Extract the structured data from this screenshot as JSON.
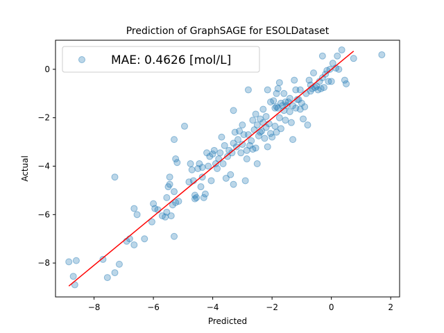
{
  "chart_data": {
    "type": "scatter",
    "title": "Prediction of GraphSAGE for ESOLDataset",
    "xlabel": "Predicted",
    "ylabel": "Actual",
    "xlim": [
      -9.3,
      2.3
    ],
    "ylim": [
      -9.4,
      1.2
    ],
    "xticks": [
      -8,
      -6,
      -4,
      -2,
      0,
      2
    ],
    "yticks": [
      -8,
      -6,
      -4,
      -2,
      0
    ],
    "xtick_labels": [
      "−8",
      "−6",
      "−4",
      "−2",
      "0",
      "2"
    ],
    "ytick_labels": [
      "−8",
      "−6",
      "−4",
      "−2",
      "0"
    ],
    "grid": false,
    "legend": {
      "position": "upper-left",
      "entry": "MAE: 0.4626 [mol/L]"
    },
    "colors": {
      "points": "#1f77b4",
      "fit_line": "#ff0000"
    },
    "fit_line": {
      "x": [
        -8.85,
        0.75
      ],
      "y": [
        -8.95,
        0.75
      ]
    },
    "series": [
      {
        "points": [
          [
            -8.85,
            -7.95
          ],
          [
            -8.7,
            -8.55
          ],
          [
            -8.65,
            -8.9
          ],
          [
            -8.6,
            -7.9
          ],
          [
            -7.7,
            -7.85
          ],
          [
            -7.55,
            -8.6
          ],
          [
            -7.3,
            -8.4
          ],
          [
            -7.15,
            -8.05
          ],
          [
            -7.3,
            -4.45
          ],
          [
            -6.9,
            -7.1
          ],
          [
            -6.8,
            -7.0
          ],
          [
            -6.65,
            -7.25
          ],
          [
            -6.65,
            -5.75
          ],
          [
            -6.55,
            -6.0
          ],
          [
            -6.3,
            -7.0
          ],
          [
            -6.05,
            -6.3
          ],
          [
            -6.0,
            -5.55
          ],
          [
            -5.95,
            -5.75
          ],
          [
            -5.85,
            -5.8
          ],
          [
            -5.7,
            -6.05
          ],
          [
            -5.6,
            -6.1
          ],
          [
            -5.55,
            -5.9
          ],
          [
            -5.5,
            -4.85
          ],
          [
            -5.45,
            -4.45
          ],
          [
            -5.4,
            -6.05
          ],
          [
            -5.35,
            -5.6
          ],
          [
            -5.3,
            -6.9
          ],
          [
            -5.3,
            -5.05
          ],
          [
            -5.25,
            -3.7
          ],
          [
            -5.25,
            -5.5
          ],
          [
            -5.2,
            -3.85
          ],
          [
            -5.15,
            -5.45
          ],
          [
            -5.3,
            -2.9
          ],
          [
            -5.45,
            -4.75
          ],
          [
            -5.55,
            -5.3
          ],
          [
            -4.95,
            -2.35
          ],
          [
            -4.8,
            -4.65
          ],
          [
            -4.75,
            -3.9
          ],
          [
            -4.7,
            -4.15
          ],
          [
            -4.65,
            -4.6
          ],
          [
            -4.6,
            -5.2
          ],
          [
            -4.6,
            -5.35
          ],
          [
            -4.55,
            -5.3
          ],
          [
            -4.5,
            -4.1
          ],
          [
            -4.45,
            -3.9
          ],
          [
            -4.4,
            -4.85
          ],
          [
            -4.35,
            -4.45
          ],
          [
            -4.35,
            -4.05
          ],
          [
            -4.3,
            -5.3
          ],
          [
            -4.25,
            -5.15
          ],
          [
            -4.2,
            -3.45
          ],
          [
            -4.15,
            -4.0
          ],
          [
            -4.1,
            -3.6
          ],
          [
            -4.05,
            -4.6
          ],
          [
            -4.0,
            -3.5
          ],
          [
            -3.95,
            -3.35
          ],
          [
            -3.9,
            -3.9
          ],
          [
            -3.85,
            -4.1
          ],
          [
            -3.8,
            -3.7
          ],
          [
            -3.75,
            -3.45
          ],
          [
            -3.7,
            -2.8
          ],
          [
            -3.65,
            -3.9
          ],
          [
            -3.6,
            -3.15
          ],
          [
            -3.55,
            -4.5
          ],
          [
            -3.5,
            -3.6
          ],
          [
            -3.45,
            -3.35
          ],
          [
            -3.4,
            -4.35
          ],
          [
            -3.35,
            -3.45
          ],
          [
            -3.3,
            -4.75
          ],
          [
            -3.3,
            -3.05
          ],
          [
            -3.3,
            -1.7
          ],
          [
            -3.25,
            -2.6
          ],
          [
            -3.2,
            -3.2
          ],
          [
            -3.15,
            -2.9
          ],
          [
            -3.1,
            -2.55
          ],
          [
            -3.05,
            -3.45
          ],
          [
            -3.0,
            -2.3
          ],
          [
            -3.0,
            -3.1
          ],
          [
            -2.95,
            -2.7
          ],
          [
            -2.9,
            -4.6
          ],
          [
            -2.85,
            -3.35
          ],
          [
            -2.85,
            -3.7
          ],
          [
            -2.8,
            -0.85
          ],
          [
            -2.8,
            -2.7
          ],
          [
            -2.75,
            -3.15
          ],
          [
            -2.7,
            -2.95
          ],
          [
            -2.65,
            -3.3
          ],
          [
            -2.65,
            -2.1
          ],
          [
            -2.6,
            -2.5
          ],
          [
            -2.55,
            -3.25
          ],
          [
            -2.55,
            -1.85
          ],
          [
            -2.5,
            -3.9
          ],
          [
            -2.5,
            -2.3
          ],
          [
            -2.45,
            -2.75
          ],
          [
            -2.4,
            -2.05
          ],
          [
            -2.4,
            -2.6
          ],
          [
            -2.35,
            -2.55
          ],
          [
            -2.3,
            -2.2
          ],
          [
            -2.3,
            -1.65
          ],
          [
            -2.25,
            -2.85
          ],
          [
            -2.2,
            -1.95
          ],
          [
            -2.2,
            -2.4
          ],
          [
            -2.15,
            -0.85
          ],
          [
            -2.15,
            -3.2
          ],
          [
            -2.1,
            -2.25
          ],
          [
            -2.05,
            -2.65
          ],
          [
            -2.05,
            -1.35
          ],
          [
            -2.0,
            -2.8
          ],
          [
            -1.95,
            -1.3
          ],
          [
            -1.9,
            -1.6
          ],
          [
            -1.9,
            -2.35
          ],
          [
            -1.85,
            -1.55
          ],
          [
            -1.85,
            -1.0
          ],
          [
            -1.85,
            -2.6
          ],
          [
            -1.8,
            -0.8
          ],
          [
            -1.8,
            -1.6
          ],
          [
            -1.75,
            -2.0
          ],
          [
            -1.75,
            -0.55
          ],
          [
            -1.7,
            -2.45
          ],
          [
            -1.7,
            -1.4
          ],
          [
            -1.65,
            -1.5
          ],
          [
            -1.6,
            -1.0
          ],
          [
            -1.6,
            -1.7
          ],
          [
            -1.55,
            -1.35
          ],
          [
            -1.55,
            -2.1
          ],
          [
            -1.5,
            -1.5
          ],
          [
            -1.45,
            -1.35
          ],
          [
            -1.4,
            -1.2
          ],
          [
            -1.4,
            -1.75
          ],
          [
            -1.35,
            -2.2
          ],
          [
            -1.3,
            -2.9
          ],
          [
            -1.3,
            -1.5
          ],
          [
            -1.25,
            -0.45
          ],
          [
            -1.2,
            -0.85
          ],
          [
            -1.2,
            -1.6
          ],
          [
            -1.15,
            -1.25
          ],
          [
            -1.1,
            -1.25
          ],
          [
            -1.05,
            -0.85
          ],
          [
            -1.05,
            -1.65
          ],
          [
            -1.0,
            -1.4
          ],
          [
            -0.95,
            -2.05
          ],
          [
            -0.9,
            -1.55
          ],
          [
            -0.85,
            -1.0
          ],
          [
            -0.8,
            -2.3
          ],
          [
            -0.75,
            -0.45
          ],
          [
            -0.7,
            -0.65
          ],
          [
            -0.7,
            -0.9
          ],
          [
            -0.65,
            -0.8
          ],
          [
            -0.6,
            -0.15
          ],
          [
            -0.55,
            -0.75
          ],
          [
            -0.5,
            -0.7
          ],
          [
            -0.45,
            -0.85
          ],
          [
            -0.4,
            -0.5
          ],
          [
            -0.35,
            -0.8
          ],
          [
            -0.3,
            -0.35
          ],
          [
            -0.3,
            0.55
          ],
          [
            -0.25,
            -0.75
          ],
          [
            -0.2,
            -0.2
          ],
          [
            -0.15,
            -0.05
          ],
          [
            -0.1,
            -0.5
          ],
          [
            -0.05,
            0.0
          ],
          [
            0.0,
            -0.5
          ],
          [
            0.05,
            0.25
          ],
          [
            0.15,
            0.05
          ],
          [
            0.2,
            0.55
          ],
          [
            0.25,
            0.0
          ],
          [
            0.35,
            0.8
          ],
          [
            0.45,
            -0.45
          ],
          [
            0.5,
            -0.6
          ],
          [
            0.75,
            0.45
          ],
          [
            1.7,
            0.6
          ]
        ]
      }
    ]
  }
}
